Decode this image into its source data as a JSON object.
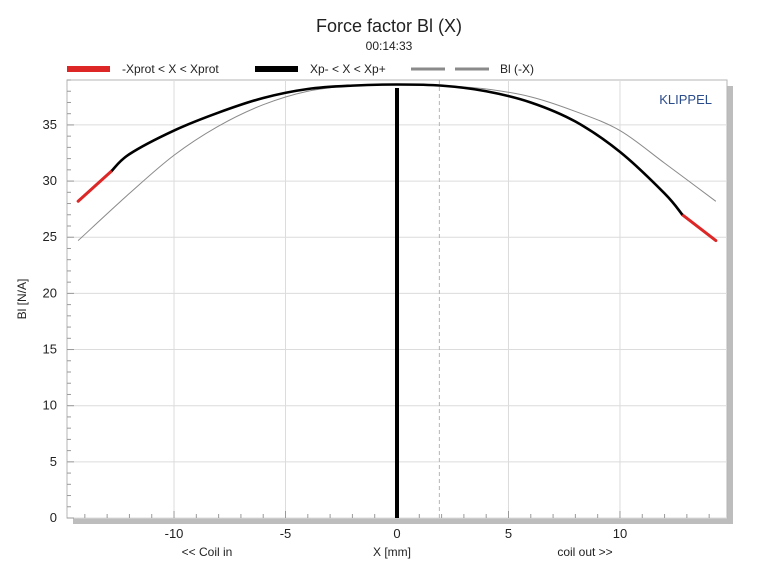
{
  "chart_data": {
    "type": "line",
    "title": "Force factor Bl (X)",
    "subtitle": "00:14:33",
    "xlabel": "X [mm]",
    "xlabel_left": "<< Coil in",
    "xlabel_right": "coil out >>",
    "ylabel": "Bl [N/A]",
    "brand": "KLIPPEL",
    "xlim": [
      -14.8,
      14.8
    ],
    "ylim": [
      0,
      39
    ],
    "xticks": [
      -10,
      -5,
      0,
      5,
      10
    ],
    "yticks": [
      0,
      5,
      10,
      15,
      20,
      25,
      30,
      35
    ],
    "grid": true,
    "legend_position": "top",
    "reference_line_x": 1.9,
    "colors": {
      "red": "#dd2727",
      "black": "#000000",
      "gray": "#8a8a8a"
    },
    "series": [
      {
        "name": "-Xprot < X < Xprot",
        "color": "#dd2727",
        "style": "solid-thick",
        "points": [
          [
            -14.3,
            28.2
          ],
          [
            -12.8,
            30.9
          ],
          [
            12.8,
            27.0
          ],
          [
            14.3,
            24.7
          ]
        ]
      },
      {
        "name": "Xp- < X < Xp+",
        "color": "#000000",
        "style": "solid-thick",
        "points": [
          [
            -12.8,
            30.9
          ],
          [
            -12,
            32.4
          ],
          [
            -10,
            34.5
          ],
          [
            -8,
            36.1
          ],
          [
            -6,
            37.4
          ],
          [
            -4,
            38.2
          ],
          [
            -2,
            38.5
          ],
          [
            0,
            38.6
          ],
          [
            2,
            38.5
          ],
          [
            4,
            38.0
          ],
          [
            6,
            37.0
          ],
          [
            8,
            35.3
          ],
          [
            10,
            32.6
          ],
          [
            12,
            28.9
          ],
          [
            12.8,
            27.0
          ]
        ]
      },
      {
        "name": "Bl (-X)",
        "color": "#8a8a8a",
        "style": "solid-thin",
        "points": [
          [
            -14.3,
            24.7
          ],
          [
            -12,
            28.9
          ],
          [
            -10,
            32.3
          ],
          [
            -8,
            34.9
          ],
          [
            -6,
            36.8
          ],
          [
            -4,
            38.0
          ],
          [
            -2,
            38.5
          ],
          [
            0,
            38.6
          ],
          [
            2,
            38.5
          ],
          [
            4,
            38.2
          ],
          [
            6,
            37.5
          ],
          [
            8,
            36.2
          ],
          [
            10,
            34.5
          ],
          [
            12,
            31.6
          ],
          [
            14.3,
            28.2
          ]
        ]
      }
    ]
  }
}
